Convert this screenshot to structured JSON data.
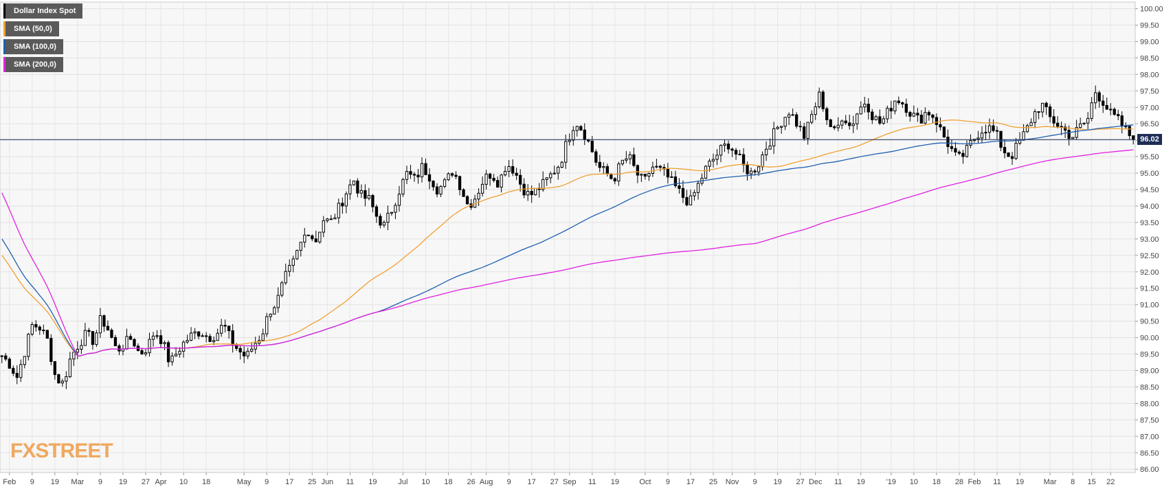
{
  "legend": [
    {
      "label": "Dollar Index Spot",
      "color": "#000000"
    },
    {
      "label": "SMA (50,0)",
      "color": "#f0a030"
    },
    {
      "label": "SMA (100,0)",
      "color": "#1f5fb0"
    },
    {
      "label": "SMA (200,0)",
      "color": "#e020e0"
    }
  ],
  "logo": {
    "text": "FXSTREET"
  },
  "chart_data": {
    "type": "candlestick",
    "title": "",
    "ylim": [
      85.9,
      100.2
    ],
    "y_ticks": [
      "100.00",
      "99.50",
      "99.00",
      "98.50",
      "98.00",
      "97.50",
      "97.00",
      "96.50",
      "96.00",
      "95.50",
      "95.00",
      "94.50",
      "94.00",
      "93.50",
      "93.00",
      "92.50",
      "92.00",
      "91.50",
      "91.00",
      "90.50",
      "90.00",
      "89.50",
      "89.00",
      "88.50",
      "88.00",
      "87.50",
      "87.00",
      "86.50",
      "86.00"
    ],
    "x_ticks": [
      {
        "label": "Feb",
        "pos": 2
      },
      {
        "label": "9",
        "pos": 8
      },
      {
        "label": "19",
        "pos": 14
      },
      {
        "label": "Mar",
        "pos": 20
      },
      {
        "label": "9",
        "pos": 26
      },
      {
        "label": "19",
        "pos": 32
      },
      {
        "label": "27",
        "pos": 38
      },
      {
        "label": "Apr",
        "pos": 42
      },
      {
        "label": "10",
        "pos": 48
      },
      {
        "label": "18",
        "pos": 54
      },
      {
        "label": "May",
        "pos": 64
      },
      {
        "label": "9",
        "pos": 70
      },
      {
        "label": "17",
        "pos": 76
      },
      {
        "label": "25",
        "pos": 82
      },
      {
        "label": "Jun",
        "pos": 86
      },
      {
        "label": "11",
        "pos": 92
      },
      {
        "label": "19",
        "pos": 98
      },
      {
        "label": "Jul",
        "pos": 106
      },
      {
        "label": "10",
        "pos": 112
      },
      {
        "label": "18",
        "pos": 118
      },
      {
        "label": "26",
        "pos": 124
      },
      {
        "label": "Aug",
        "pos": 128
      },
      {
        "label": "9",
        "pos": 134
      },
      {
        "label": "17",
        "pos": 140
      },
      {
        "label": "27",
        "pos": 146
      },
      {
        "label": "Sep",
        "pos": 150
      },
      {
        "label": "11",
        "pos": 156
      },
      {
        "label": "19",
        "pos": 162
      },
      {
        "label": "Oct",
        "pos": 170
      },
      {
        "label": "9",
        "pos": 176
      },
      {
        "label": "17",
        "pos": 182
      },
      {
        "label": "25",
        "pos": 188
      },
      {
        "label": "Nov",
        "pos": 193
      },
      {
        "label": "9",
        "pos": 199
      },
      {
        "label": "19",
        "pos": 205
      },
      {
        "label": "27",
        "pos": 211
      },
      {
        "label": "Dec",
        "pos": 215
      },
      {
        "label": "11",
        "pos": 221
      },
      {
        "label": "19",
        "pos": 227
      },
      {
        "label": "'19",
        "pos": 235
      },
      {
        "label": "10",
        "pos": 241
      },
      {
        "label": "18",
        "pos": 247
      },
      {
        "label": "28",
        "pos": 253
      },
      {
        "label": "Feb",
        "pos": 257
      },
      {
        "label": "11",
        "pos": 263
      },
      {
        "label": "19",
        "pos": 269
      },
      {
        "label": "Mar",
        "pos": 277
      },
      {
        "label": "8",
        "pos": 283
      },
      {
        "label": "15",
        "pos": 288
      },
      {
        "label": "22",
        "pos": 293
      }
    ],
    "last_price": 96.02,
    "last_price_label": "96.02",
    "ohlc_path": [
      89.45,
      89.2,
      88.8,
      89.6,
      90.4,
      90.3,
      89.9,
      88.8,
      88.6,
      89.4,
      89.8,
      90.1,
      89.9,
      90.6,
      90.2,
      89.6,
      89.8,
      90.0,
      89.5,
      89.7,
      90.2,
      89.9,
      89.2,
      89.6,
      89.9,
      90.1,
      90.2,
      90.0,
      90.1,
      90.4,
      89.9,
      89.6,
      89.4,
      89.8,
      90.1,
      90.8,
      91.1,
      91.8,
      92.2,
      92.8,
      93.3,
      92.9,
      93.6,
      93.5,
      93.9,
      94.4,
      94.8,
      94.3,
      94.2,
      93.7,
      93.4,
      93.9,
      94.5,
      95.0,
      94.8,
      95.2,
      94.9,
      94.5,
      94.7,
      95.1,
      94.6,
      94.0,
      94.3,
      94.8,
      95.0,
      94.7,
      95.3,
      95.1,
      94.6,
      94.3,
      94.5,
      94.7,
      95.0,
      95.3,
      96.0,
      96.6,
      96.3,
      95.8,
      95.2,
      95.0,
      94.8,
      95.3,
      95.5,
      95.0,
      94.7,
      95.2,
      95.1,
      94.9,
      94.6,
      94.3,
      94.1,
      94.6,
      95.1,
      95.4,
      95.7,
      95.9,
      95.6,
      95.2,
      95.0,
      95.3,
      95.8,
      96.2,
      96.6,
      96.9,
      96.5,
      96.1,
      96.8,
      97.4,
      96.6,
      96.2,
      96.8,
      96.4,
      96.9,
      97.2,
      96.7,
      96.5,
      96.9,
      97.3,
      97.1,
      96.8,
      96.6,
      96.9,
      96.7,
      96.2,
      95.8,
      95.4,
      95.6,
      96.0,
      96.3,
      96.4,
      96.2,
      95.7,
      95.5,
      95.9,
      96.3,
      96.8,
      97.1,
      96.7,
      96.5,
      96.3,
      96.1,
      96.4,
      96.6,
      97.5,
      97.2,
      96.8,
      96.6,
      96.3,
      96.02
    ]
  }
}
